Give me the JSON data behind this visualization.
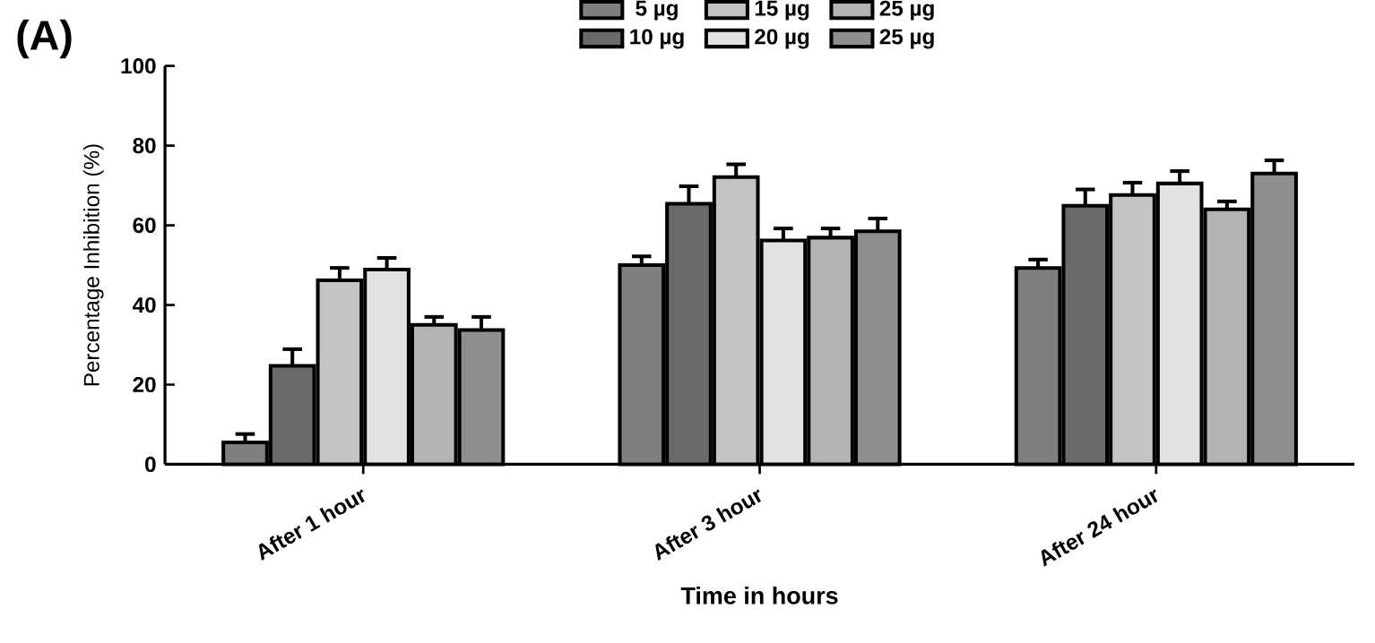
{
  "chart_data": {
    "type": "bar",
    "xlabel": "Time in hours",
    "ylabel": "Percentage Inhibition (%)",
    "categories": [
      "After 1 hour",
      "After 3 hour",
      "After 24 hour"
    ],
    "ylim": [
      0,
      100
    ],
    "yticks": [
      0,
      20,
      40,
      60,
      80,
      100
    ],
    "legend": "top",
    "annotations": [
      "(A)"
    ],
    "series": [
      {
        "name": "5 µg",
        "color": "#7f7f7f",
        "values": [
          5.5,
          50.0,
          49.3
        ],
        "errors": [
          2.1,
          2.2,
          2.1
        ]
      },
      {
        "name": "10 µg",
        "color": "#6a6a6a",
        "values": [
          24.7,
          65.4,
          64.9
        ],
        "errors": [
          4.2,
          4.4,
          4.1
        ]
      },
      {
        "name": "15 µg",
        "color": "#c4c4c4",
        "values": [
          46.2,
          72.1,
          67.6
        ],
        "errors": [
          3.1,
          3.2,
          3.1
        ]
      },
      {
        "name": "20 µg",
        "color": "#e2e2e2",
        "values": [
          48.9,
          56.2,
          70.5
        ],
        "errors": [
          2.9,
          3.0,
          3.1
        ]
      },
      {
        "name": "25 µg",
        "color": "#b4b4b4",
        "values": [
          35.0,
          56.9,
          64.0
        ],
        "errors": [
          2.0,
          2.3,
          2.0
        ]
      },
      {
        "name": "25 µg",
        "color": "#8e8e8e",
        "values": [
          33.7,
          58.5,
          73.0
        ],
        "errors": [
          3.3,
          3.2,
          3.3
        ]
      }
    ]
  }
}
